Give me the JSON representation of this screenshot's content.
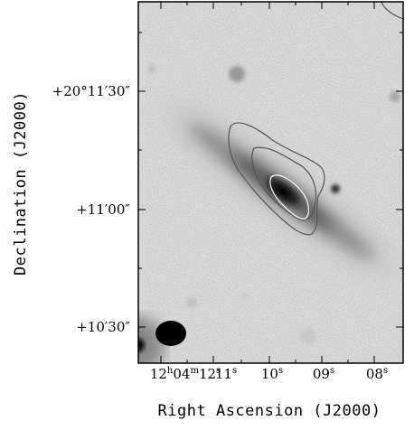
{
  "axes": {
    "xlabel": "Right Ascension (J2000)",
    "ylabel": "Declination (J2000)",
    "x_ticks": [
      {
        "hms": "12h04m12s",
        "label_parts": [
          "12",
          "h",
          "04",
          "m",
          "12",
          "s"
        ]
      },
      {
        "hms": "11s",
        "label_parts": [
          "11",
          "s"
        ]
      },
      {
        "hms": "10s",
        "label_parts": [
          "10",
          "s"
        ]
      },
      {
        "hms": "09s",
        "label_parts": [
          "09",
          "s"
        ]
      },
      {
        "hms": "08s",
        "label_parts": [
          "08",
          "s"
        ]
      }
    ],
    "y_ticks": [
      {
        "label": "+20°11′30″"
      },
      {
        "label": "+11′00″"
      },
      {
        "label": "+10′30″"
      }
    ]
  },
  "image": {
    "description_semantic": "greyscale optical image of edge-on disk galaxy with radio contours",
    "colors": {
      "background": "#f2f2f2",
      "galaxy_core": "#000000",
      "contour": "#555555",
      "beam": "#000000"
    }
  }
}
